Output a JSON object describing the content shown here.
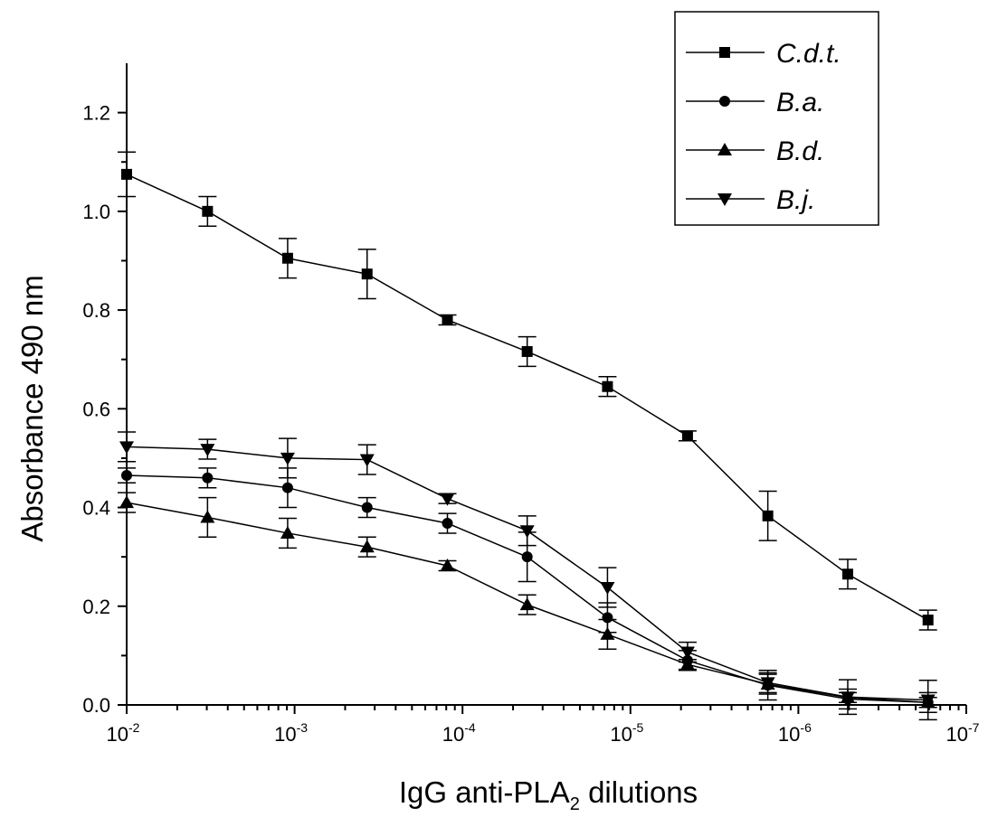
{
  "chart_data": {
    "type": "line",
    "xlabel": {
      "main": "IgG anti-PLA",
      "sub": "2",
      "after": " dilutions"
    },
    "ylabel": "Absorbance 490 nm",
    "x_scale": "log",
    "x_axis_reversed": true,
    "xlim": [
      0.01,
      1e-07
    ],
    "ylim": [
      0.0,
      1.3
    ],
    "x_ticks": [
      {
        "base": "10",
        "exp": "-2"
      },
      {
        "base": "10",
        "exp": "-3"
      },
      {
        "base": "10",
        "exp": "-4"
      },
      {
        "base": "10",
        "exp": "-5"
      },
      {
        "base": "10",
        "exp": "-6"
      },
      {
        "base": "10",
        "exp": "-7"
      }
    ],
    "y_ticks": [
      "0.0",
      "0.2",
      "0.4",
      "0.6",
      "0.8",
      "1.0",
      "1.2"
    ],
    "grid": false,
    "legend_position": "top-right",
    "x": [
      0.01,
      0.0033,
      0.0011,
      0.00037,
      0.000123,
      4.12e-05,
      1.37e-05,
      4.57e-06,
      1.52e-06,
      5.08e-07,
      1.69e-07
    ],
    "series": [
      {
        "name": "C.d.t.",
        "marker": "square",
        "values": [
          1.075,
          1.0,
          0.905,
          0.873,
          0.78,
          0.716,
          0.645,
          0.545,
          0.383,
          0.265,
          0.172
        ],
        "errors": [
          0.045,
          0.03,
          0.04,
          0.05,
          0.01,
          0.03,
          0.02,
          0.01,
          0.05,
          0.03,
          0.02
        ]
      },
      {
        "name": "B.a.",
        "marker": "circle",
        "values": [
          0.465,
          0.46,
          0.44,
          0.4,
          0.368,
          0.3,
          0.177,
          0.09,
          0.04,
          0.012,
          0.005
        ],
        "errors": [
          0.015,
          0.02,
          0.04,
          0.02,
          0.02,
          0.05,
          0.03,
          0.02,
          0.03,
          0.02,
          0.02
        ]
      },
      {
        "name": "B.d.",
        "marker": "triangle-up",
        "values": [
          0.41,
          0.38,
          0.348,
          0.32,
          0.282,
          0.203,
          0.143,
          0.082,
          0.042,
          0.015,
          0.005
        ],
        "errors": [
          0.02,
          0.04,
          0.03,
          0.02,
          0.01,
          0.02,
          0.03,
          0.01,
          0.02,
          0.01,
          0.01
        ]
      },
      {
        "name": "B.j.",
        "marker": "triangle-down",
        "values": [
          0.523,
          0.518,
          0.5,
          0.497,
          0.418,
          0.353,
          0.238,
          0.107,
          0.045,
          0.016,
          0.01
        ],
        "errors": [
          0.03,
          0.02,
          0.04,
          0.03,
          0.01,
          0.03,
          0.04,
          0.02,
          0.02,
          0.035,
          0.04
        ]
      }
    ]
  }
}
